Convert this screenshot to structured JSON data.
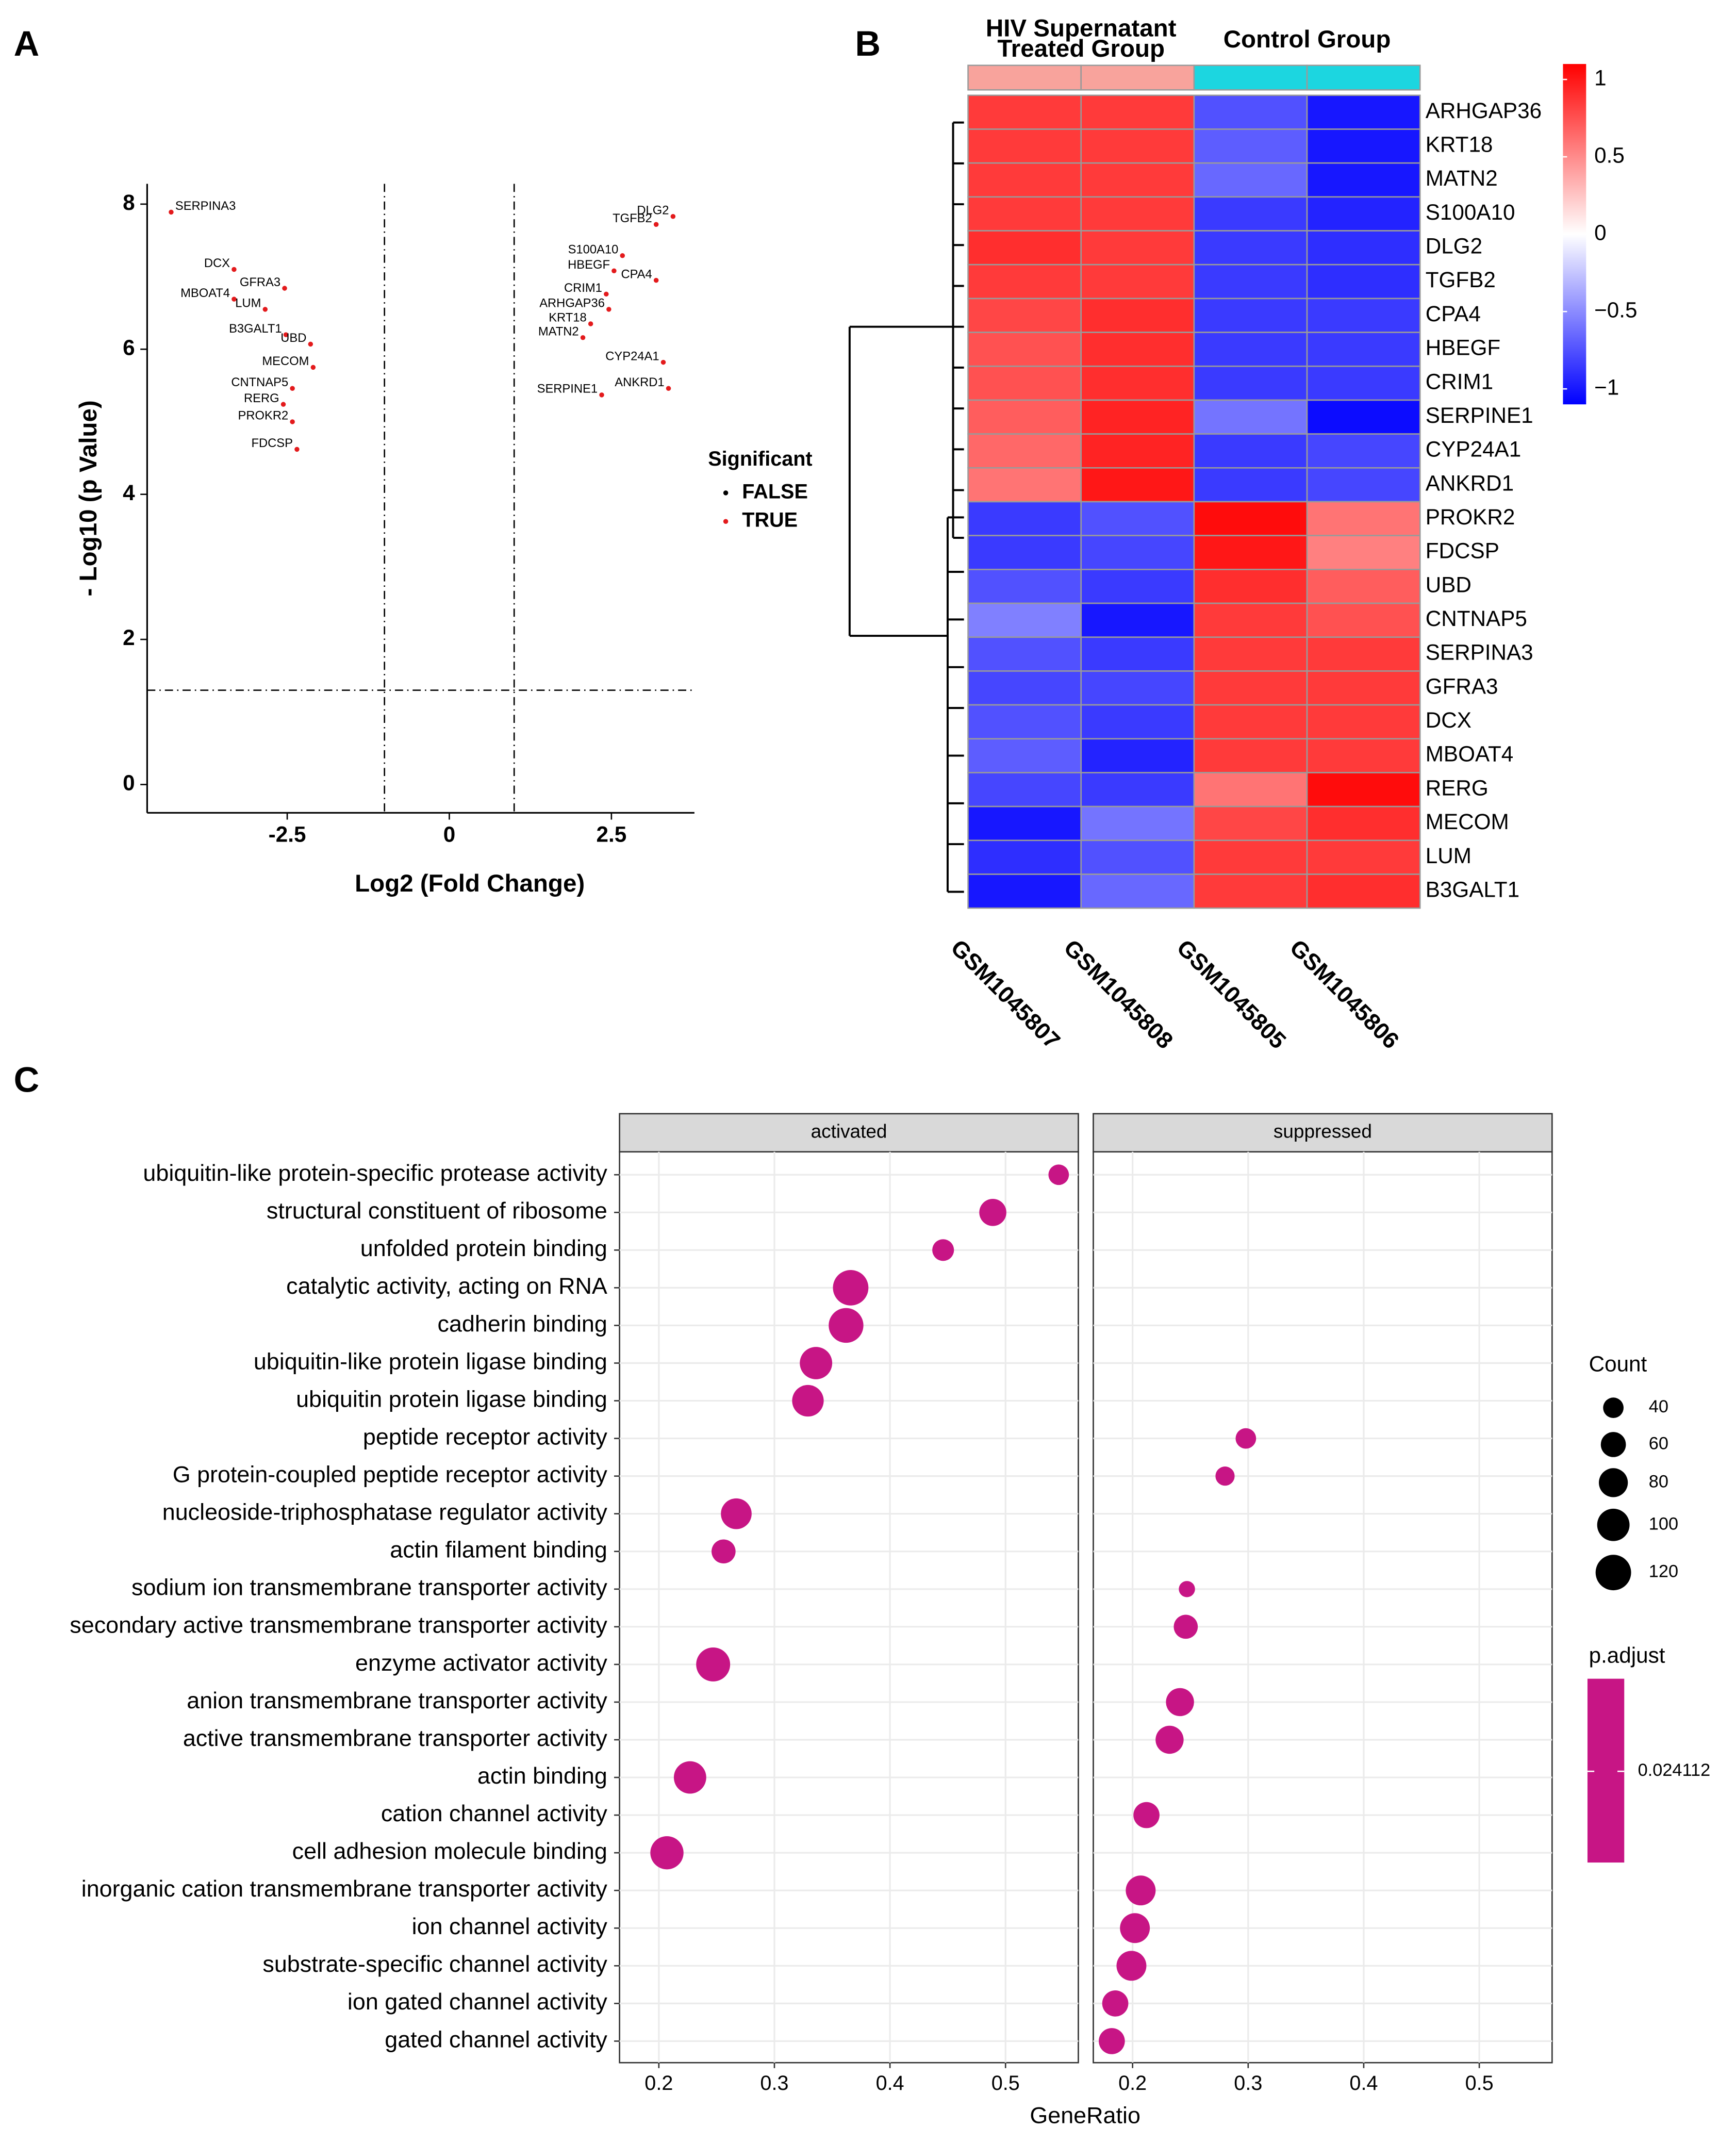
{
  "panels": [
    "A",
    "B",
    "C"
  ],
  "chart_data": [
    {
      "type": "volcano",
      "xlabel": "Log2 (Fold Change)",
      "ylabel": "- Log10 (p Value)",
      "xlim": [
        -4.66,
        3.78
      ],
      "ylim": [
        -0.39,
        8.28
      ],
      "xticks": [
        -2.5,
        0,
        2.5
      ],
      "yticks": [
        0,
        2,
        4,
        6,
        8
      ],
      "vlines": [
        -1,
        1
      ],
      "hline": 1.3,
      "legend_title": "Significant",
      "series": [
        {
          "name": "FALSE",
          "color": "#000000",
          "labels": [],
          "x": [],
          "values": []
        },
        {
          "name": "TRUE",
          "color": "#e31a1c",
          "labels": [
            "SERPINA3",
            "DCX",
            "MBOAT4",
            "GFRA3",
            "LUM",
            "B3GALT1",
            "UBD",
            "MECOM",
            "CNTNAP5",
            "RERG",
            "PROKR2",
            "FDCSP",
            "DLG2",
            "TGFB2",
            "S100A10",
            "HBEGF",
            "CPA4",
            "CRIM1",
            "ARHGAP36",
            "KRT18",
            "MATN2",
            "CYP24A1",
            "ANKRD1",
            "SERPINE1"
          ],
          "x": [
            -4.29,
            -3.32,
            -3.32,
            -2.54,
            -2.84,
            -2.52,
            -2.14,
            -2.1,
            -2.42,
            -2.56,
            -2.42,
            -2.35,
            3.45,
            3.19,
            2.67,
            2.54,
            3.19,
            2.42,
            2.46,
            2.18,
            2.06,
            3.3,
            3.38,
            2.35
          ],
          "values": [
            7.89,
            7.1,
            6.69,
            6.84,
            6.55,
            6.2,
            6.07,
            5.75,
            5.46,
            5.24,
            5.0,
            4.62,
            7.83,
            7.72,
            7.29,
            7.08,
            6.95,
            6.76,
            6.55,
            6.35,
            6.16,
            5.82,
            5.46,
            5.37
          ]
        }
      ]
    },
    {
      "type": "heatmap",
      "columns": [
        "GSM1045807",
        "GSM1045808",
        "GSM1045805",
        "GSM1045806"
      ],
      "groups": [
        {
          "name": [
            "HIV Supernatant",
            "Treated Group"
          ],
          "color": "#f8a39c",
          "size": 2
        },
        {
          "name": [
            "Control Group"
          ],
          "color": "#1cd6e0",
          "size": 2
        }
      ],
      "rows": [
        "ARHGAP36",
        "KRT18",
        "MATN2",
        "S100A10",
        "DLG2",
        "TGFB2",
        "CPA4",
        "HBEGF",
        "CRIM1",
        "SERPINE1",
        "CYP24A1",
        "ANKRD1",
        "PROKR2",
        "FDCSP",
        "UBD",
        "CNTNAP5",
        "SERPINA3",
        "GFRA3",
        "DCX",
        "MBOAT4",
        "RERG",
        "MECOM",
        "LUM",
        "B3GALT1"
      ],
      "values": [
        [
          0.85,
          0.85,
          -0.75,
          -1.0
        ],
        [
          0.85,
          0.85,
          -0.7,
          -1.0
        ],
        [
          0.85,
          0.85,
          -0.65,
          -1.0
        ],
        [
          0.85,
          0.85,
          -0.85,
          -0.95
        ],
        [
          0.9,
          0.85,
          -0.85,
          -0.9
        ],
        [
          0.85,
          0.85,
          -0.85,
          -0.9
        ],
        [
          0.8,
          0.9,
          -0.85,
          -0.85
        ],
        [
          0.75,
          0.9,
          -0.85,
          -0.85
        ],
        [
          0.75,
          0.9,
          -0.85,
          -0.85
        ],
        [
          0.7,
          0.95,
          -0.6,
          -1.05
        ],
        [
          0.65,
          0.95,
          -0.85,
          -0.8
        ],
        [
          0.6,
          1.0,
          -0.85,
          -0.8
        ],
        [
          -0.85,
          -0.75,
          1.05,
          0.6
        ],
        [
          -0.85,
          -0.8,
          1.0,
          0.55
        ],
        [
          -0.75,
          -0.85,
          0.9,
          0.7
        ],
        [
          -0.55,
          -1.0,
          0.85,
          0.75
        ],
        [
          -0.75,
          -0.85,
          0.85,
          0.85
        ],
        [
          -0.8,
          -0.8,
          0.85,
          0.85
        ],
        [
          -0.75,
          -0.85,
          0.85,
          0.85
        ],
        [
          -0.7,
          -0.95,
          0.85,
          0.85
        ],
        [
          -0.8,
          -0.85,
          0.6,
          1.05
        ],
        [
          -1.0,
          -0.6,
          0.8,
          0.9
        ],
        [
          -0.9,
          -0.75,
          0.85,
          0.85
        ],
        [
          -1.0,
          -0.65,
          0.85,
          0.9
        ]
      ],
      "zlim": [
        -1.1,
        1.1
      ],
      "zticks": [
        1,
        0.5,
        0,
        {
          "value": -0.5,
          "label": "−0.5"
        },
        {
          "value": -1,
          "label": "−1"
        }
      ],
      "colors": [
        "#0000ff",
        "#ffffff",
        "#ff0000"
      ]
    },
    {
      "type": "dotplot",
      "xlabel": "GeneRatio",
      "categories": [
        "ubiquitin-like protein-specific protease activity",
        "structural constituent of ribosome",
        "unfolded protein binding",
        "catalytic activity, acting on RNA",
        "cadherin binding",
        "ubiquitin-like protein ligase binding",
        "ubiquitin protein ligase binding",
        "peptide receptor activity",
        "G protein-coupled peptide receptor activity",
        "nucleoside-triphosphatase regulator activity",
        "actin filament binding",
        "sodium ion transmembrane transporter activity",
        "secondary active transmembrane transporter activity",
        "enzyme activator activity",
        "anion transmembrane transporter activity",
        "active transmembrane transporter activity",
        "actin binding",
        "cation channel activity",
        "cell adhesion molecule binding",
        "inorganic cation transmembrane transporter activity",
        "ion channel activity",
        "substrate-specific channel activity",
        "ion gated channel activity",
        "gated channel activity"
      ],
      "color": "#c71585",
      "series": [
        {
          "name": "activated",
          "values": [
            0.546,
            0.489,
            0.446,
            0.366,
            0.362,
            0.336,
            0.329,
            null,
            null,
            0.267,
            0.256,
            null,
            null,
            0.247,
            null,
            null,
            0.227,
            null,
            0.207,
            null,
            null,
            null,
            null,
            null
          ],
          "sizes": [
            40,
            70,
            45,
            120,
            115,
            100,
            95,
            null,
            null,
            90,
            55,
            null,
            null,
            110,
            null,
            null,
            100,
            null,
            105,
            null,
            null,
            null,
            null,
            null
          ]
        },
        {
          "name": "suppressed",
          "values": [
            null,
            null,
            null,
            null,
            null,
            null,
            null,
            0.298,
            0.28,
            null,
            null,
            0.247,
            0.246,
            null,
            0.241,
            0.232,
            null,
            0.212,
            null,
            0.207,
            0.202,
            0.199,
            0.185,
            0.182
          ],
          "sizes": [
            null,
            null,
            null,
            null,
            null,
            null,
            null,
            40,
            35,
            null,
            null,
            25,
            55,
            null,
            75,
            75,
            null,
            65,
            null,
            85,
            85,
            85,
            65,
            65
          ]
        }
      ],
      "xlim": [
        0.166,
        0.563
      ],
      "xticks": [
        0.2,
        0.3,
        0.4,
        0.5
      ],
      "size_legend": {
        "title": "Count",
        "ticks": [
          40,
          60,
          80,
          100,
          120
        ]
      },
      "color_legend": {
        "title": "p.adjust",
        "ticks": [
          0.024112
        ]
      }
    }
  ]
}
